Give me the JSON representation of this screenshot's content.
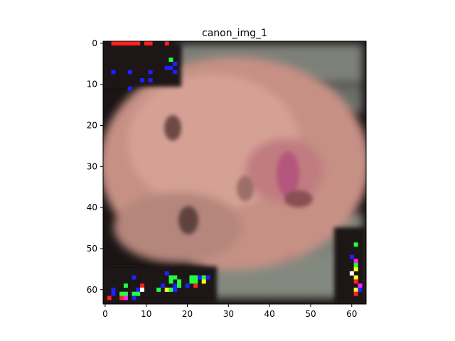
{
  "chart_data": {
    "type": "heatmap",
    "title": "canon_img_1",
    "xlabel": "",
    "ylabel": "",
    "image_size": [
      64,
      64
    ],
    "xlim": [
      -0.5,
      63.5
    ],
    "ylim": [
      63.5,
      -0.5
    ],
    "xticks": [
      0,
      10,
      20,
      30,
      40,
      50,
      60
    ],
    "yticks": [
      0,
      10,
      20,
      30,
      40,
      50,
      60
    ],
    "content": "pixelated close-up of a face rotated sideways with noisy colored pixel artifacts near the edges",
    "grid": false,
    "legend": "none",
    "colors": {
      "skin": "#c9958a",
      "skin_shadow": "#a47268",
      "background_gray": "#7e837a",
      "dark": "#1a1414",
      "artifact_red": "#ff2020",
      "artifact_blue": "#2020ff",
      "artifact_green": "#20ff40",
      "artifact_yellow": "#ffff20",
      "artifact_white": "#ffffff",
      "artifact_magenta": "#ff20ff"
    }
  }
}
